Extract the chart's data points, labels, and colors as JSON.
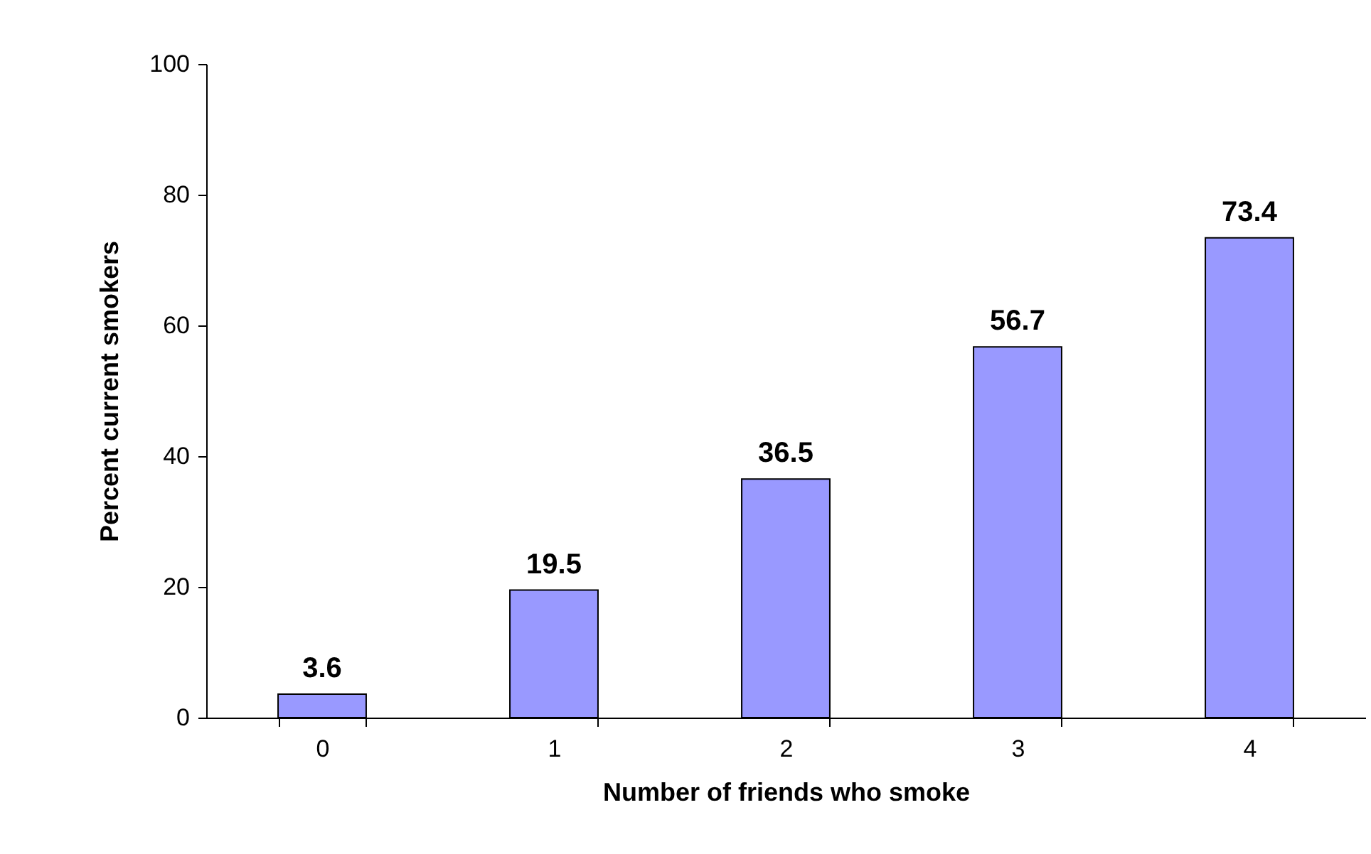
{
  "chart_data": {
    "type": "bar",
    "xlabel": "Number of friends who smoke",
    "ylabel": "Percent current smokers",
    "categories": [
      "0",
      "1",
      "2",
      "3",
      "4"
    ],
    "values": [
      3.6,
      19.5,
      36.5,
      56.7,
      73.4
    ],
    "color": "#9999ff",
    "ylim": [
      0,
      100
    ],
    "yticks": [
      0,
      20,
      40,
      60,
      80,
      100
    ],
    "grid": false,
    "data_labels": true
  }
}
